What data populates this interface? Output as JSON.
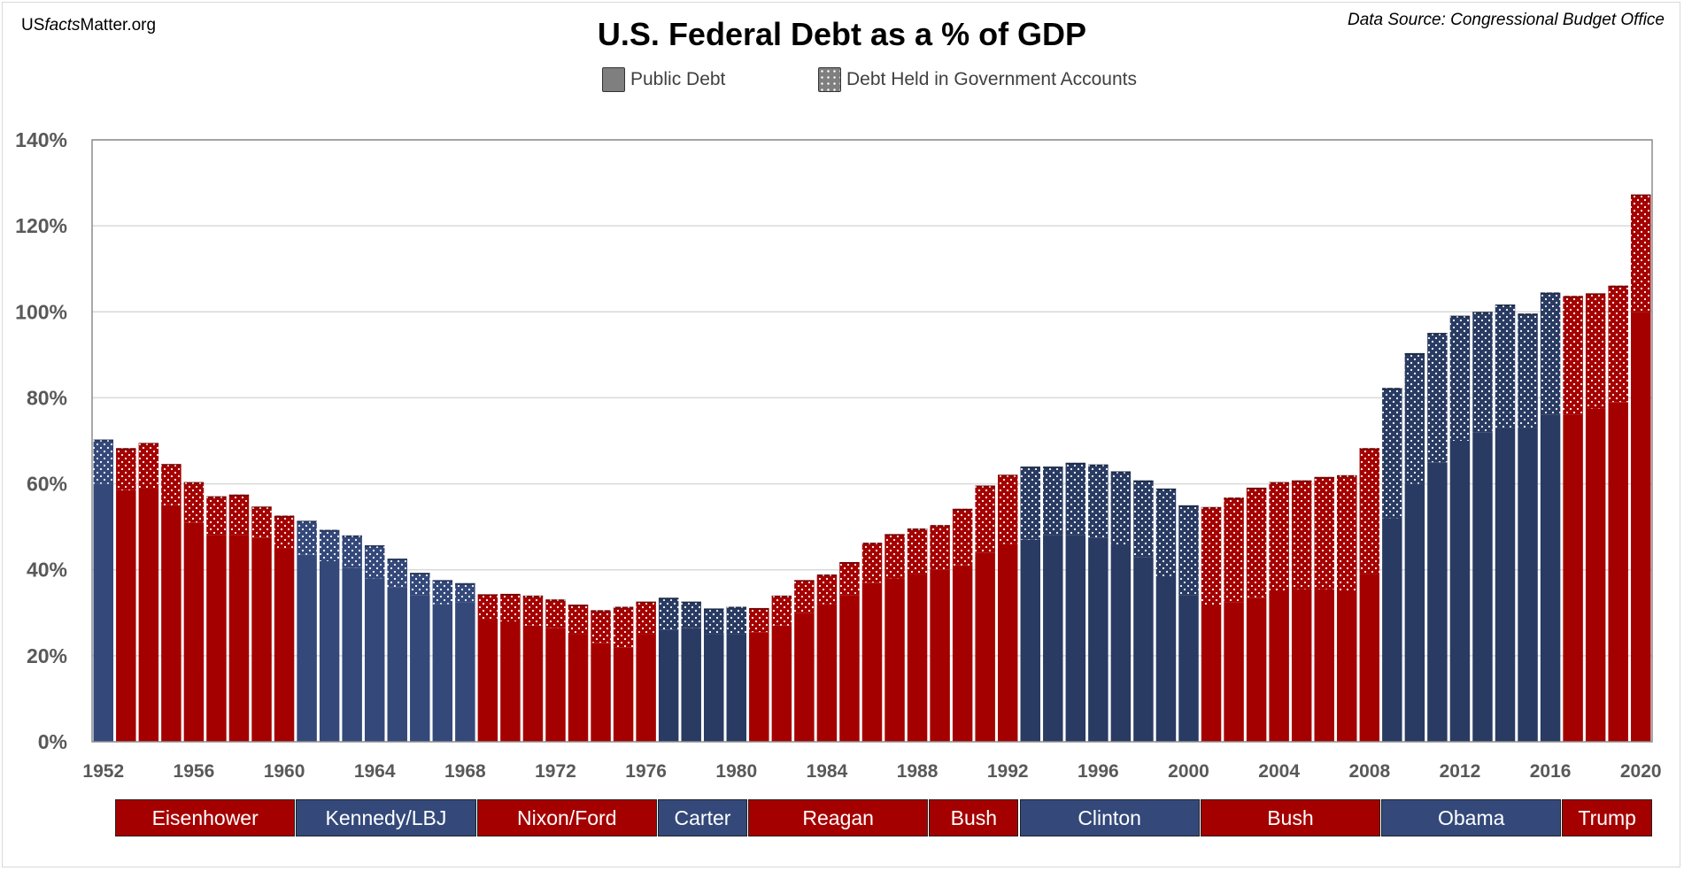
{
  "header": {
    "site_prefix": "US",
    "site_italic": "facts",
    "site_suffix": "Matter.org",
    "data_source": "Data Source: Congressional Budget Office"
  },
  "legend": {
    "public_debt": "Public Debt",
    "gov_accounts": "Debt Held in Government Accounts"
  },
  "colors": {
    "republican": "#a50000",
    "democrat_early": "#34497a",
    "democrat_late": "#293b62",
    "grid": "#d9d9d9",
    "axis_text": "#595959"
  },
  "chart_data": {
    "type": "bar",
    "title": "U.S. Federal Debt as a % of GDP",
    "stacked": true,
    "series": [
      {
        "name": "Public Debt",
        "pattern": "solid"
      },
      {
        "name": "Debt Held in Government Accounts",
        "pattern": "dotted"
      }
    ],
    "years": [
      1952,
      1953,
      1954,
      1955,
      1956,
      1957,
      1958,
      1959,
      1960,
      1961,
      1962,
      1963,
      1964,
      1965,
      1966,
      1967,
      1968,
      1969,
      1970,
      1971,
      1972,
      1973,
      1974,
      1975,
      1976,
      1977,
      1978,
      1979,
      1980,
      1981,
      1982,
      1983,
      1984,
      1985,
      1986,
      1987,
      1988,
      1989,
      1990,
      1991,
      1992,
      1993,
      1994,
      1995,
      1996,
      1997,
      1998,
      1999,
      2000,
      2001,
      2002,
      2003,
      2004,
      2005,
      2006,
      2007,
      2008,
      2009,
      2010,
      2011,
      2012,
      2013,
      2014,
      2015,
      2016,
      2017,
      2018,
      2019,
      2020
    ],
    "total": [
      70.3,
      68.3,
      69.5,
      64.6,
      60.4,
      57.1,
      57.5,
      54.7,
      52.6,
      51.4,
      49.3,
      48.0,
      45.7,
      42.6,
      39.3,
      37.6,
      36.9,
      34.3,
      34.4,
      34.0,
      33.1,
      31.9,
      30.6,
      31.4,
      32.6,
      33.5,
      32.6,
      31.0,
      31.4,
      31.1,
      34.0,
      37.6,
      38.9,
      41.8,
      46.3,
      48.3,
      49.6,
      50.4,
      54.2,
      59.6,
      62.1,
      64.0,
      64.0,
      64.9,
      64.5,
      62.9,
      60.8,
      58.9,
      55.0,
      54.6,
      56.8,
      59.1,
      60.4,
      60.8,
      61.6,
      62.0,
      68.3,
      82.3,
      90.4,
      95.1,
      99.1,
      100.0,
      101.7,
      99.6,
      104.5,
      103.7,
      104.3,
      106.1,
      127.3
    ],
    "public": [
      60.0,
      58.5,
      59.0,
      55.0,
      51.0,
      48.0,
      48.0,
      47.5,
      45.0,
      43.5,
      42.0,
      40.5,
      38.0,
      36.0,
      34.0,
      32.0,
      32.5,
      28.5,
      28.0,
      27.0,
      26.5,
      25.0,
      23.0,
      22.0,
      25.0,
      26.0,
      26.5,
      25.0,
      25.0,
      25.5,
      27.0,
      30.0,
      32.0,
      34.0,
      37.0,
      38.0,
      39.0,
      40.0,
      41.0,
      44.0,
      46.0,
      47.0,
      48.0,
      48.0,
      47.5,
      45.5,
      43.0,
      38.5,
      34.0,
      31.5,
      32.5,
      33.5,
      35.0,
      35.5,
      35.5,
      35.0,
      39.0,
      52.0,
      60.0,
      65.0,
      70.0,
      72.0,
      73.0,
      73.0,
      76.0,
      76.0,
      77.5,
      79.0,
      100.0
    ],
    "y_axis": {
      "min": 0,
      "max": 140,
      "step": 20,
      "tick_labels": [
        "0%",
        "20%",
        "40%",
        "60%",
        "80%",
        "100%",
        "120%",
        "140%"
      ]
    },
    "x_tick_labels": [
      "1952",
      "1956",
      "1960",
      "1964",
      "1968",
      "1972",
      "1976",
      "1980",
      "1984",
      "1988",
      "1992",
      "1996",
      "2000",
      "2004",
      "2008",
      "2012",
      "2016",
      "2020"
    ],
    "x_tick_years": [
      1952,
      1956,
      1960,
      1964,
      1968,
      1972,
      1976,
      1980,
      1984,
      1988,
      1992,
      1996,
      2000,
      2004,
      2008,
      2012,
      2016,
      2020
    ],
    "presidents": [
      {
        "name": "Eisenhower",
        "party": "R",
        "start": 1953,
        "end": 1960
      },
      {
        "name": "Kennedy/LBJ",
        "party": "D",
        "start": 1961,
        "end": 1968
      },
      {
        "name": "Nixon/Ford",
        "party": "R",
        "start": 1969,
        "end": 1976
      },
      {
        "name": "Carter",
        "party": "D",
        "start": 1977,
        "end": 1980
      },
      {
        "name": "Reagan",
        "party": "R",
        "start": 1981,
        "end": 1988
      },
      {
        "name": "Bush",
        "party": "R",
        "start": 1989,
        "end": 1992
      },
      {
        "name": "Clinton",
        "party": "D",
        "start": 1993,
        "end": 2000
      },
      {
        "name": "Bush",
        "party": "R",
        "start": 2001,
        "end": 2008
      },
      {
        "name": "Obama",
        "party": "D",
        "start": 2009,
        "end": 2016
      },
      {
        "name": "Trump",
        "party": "R",
        "start": 2017,
        "end": 2020
      }
    ]
  }
}
